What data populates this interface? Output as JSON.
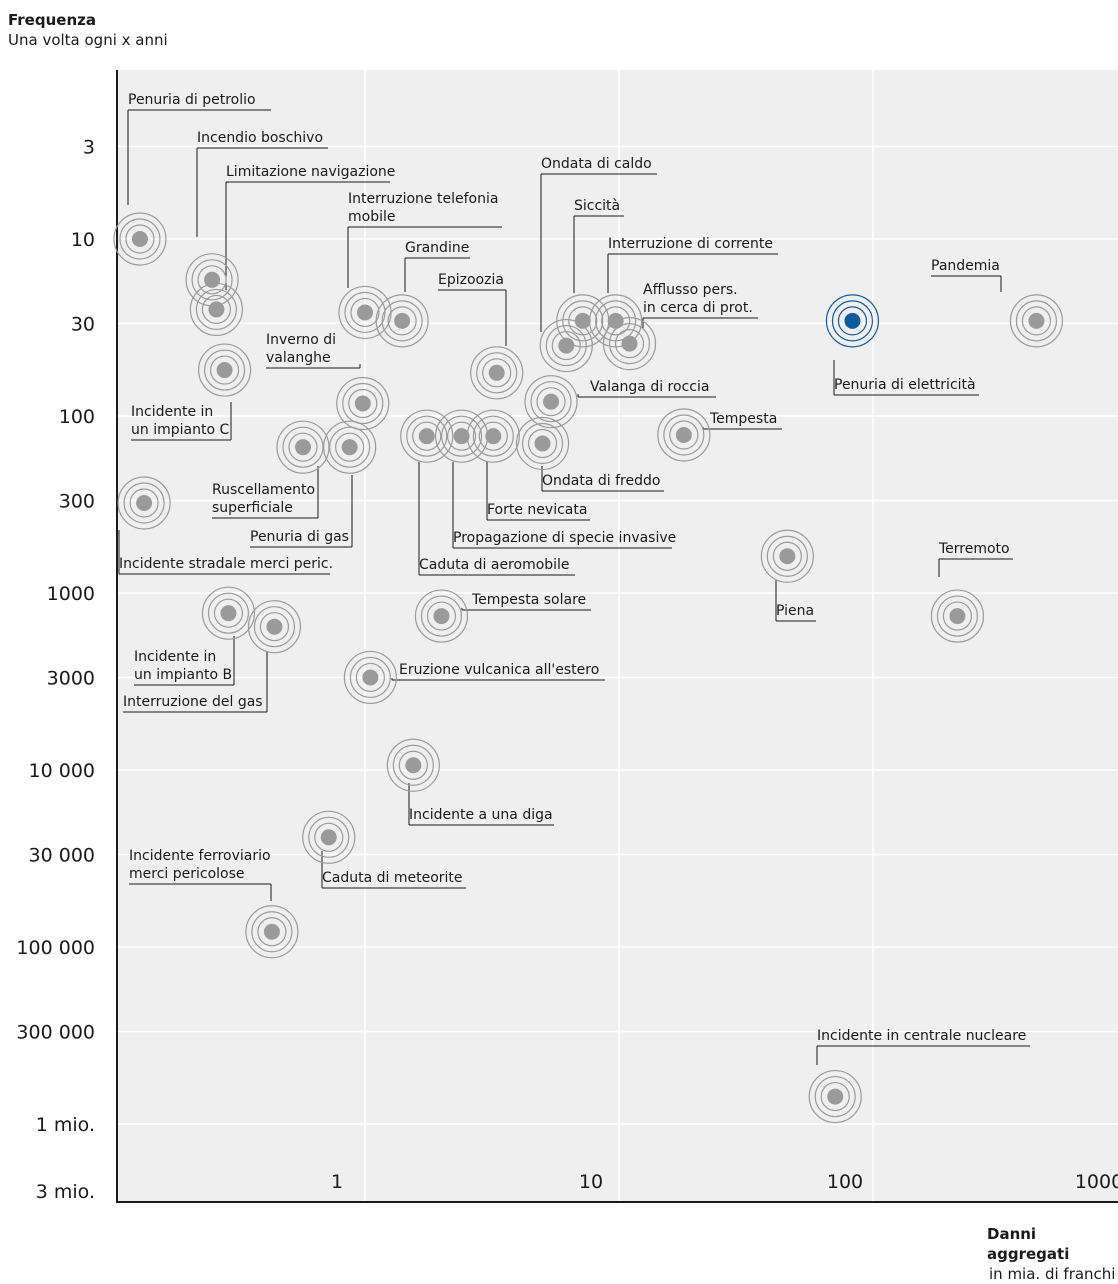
{
  "chart_data": {
    "type": "scatter",
    "y_title": "Frequenza",
    "y_subtitle": "Una volta ogni x anni",
    "x_title": "Danni aggregati",
    "x_subtitle": "in mia. di franchi",
    "x_scale": "log",
    "y_scale": "log (inverted)",
    "xlim": [
      0.1,
      2000
    ],
    "ylim": [
      1,
      3000000
    ],
    "grid": true,
    "x_ticks": [
      {
        "value": 1,
        "label": "1"
      },
      {
        "value": 10,
        "label": "10"
      },
      {
        "value": 100,
        "label": "100"
      },
      {
        "value": 1000,
        "label": "1000"
      }
    ],
    "y_ticks": [
      {
        "value": 3,
        "label": "3"
      },
      {
        "value": 10,
        "label": "10"
      },
      {
        "value": 30,
        "label": "30"
      },
      {
        "value": 100,
        "label": "100"
      },
      {
        "value": 300,
        "label": "300"
      },
      {
        "value": 1000,
        "label": "1000"
      },
      {
        "value": 3000,
        "label": "3000"
      },
      {
        "value": 10000,
        "label": "10 000"
      },
      {
        "value": 30000,
        "label": "30 000"
      },
      {
        "value": 100000,
        "label": "100 000"
      },
      {
        "value": 300000,
        "label": "300 000"
      },
      {
        "value": 1000000,
        "label": "1 mio."
      },
      {
        "value": 3000000,
        "label": "3 mio."
      }
    ],
    "points": [
      {
        "label": "Penuria di petrolio",
        "x": 0.13,
        "y": 10
      },
      {
        "label": "Incendio boschivo",
        "x": 0.25,
        "y": 17
      },
      {
        "label": "Limitazione navigazione",
        "x": 0.26,
        "y": 25
      },
      {
        "label": "Interruzione telefonia mobile",
        "x": 1.0,
        "y": 26
      },
      {
        "label": "Grandine",
        "x": 1.4,
        "y": 29
      },
      {
        "label": "Epizoozia",
        "x": 3.3,
        "y": 57
      },
      {
        "label": "Ondata di caldo",
        "x": 6.2,
        "y": 40
      },
      {
        "label": "Siccità",
        "x": 7.2,
        "y": 29
      },
      {
        "label": "Interruzione di corrente",
        "x": 9.7,
        "y": 29
      },
      {
        "label": "Afflusso pers. in cerca di prot.",
        "x": 11,
        "y": 39
      },
      {
        "label": "Pandemia",
        "x": 440,
        "y": 29
      },
      {
        "label": "Penuria di elettricità",
        "x": 83,
        "y": 29
      },
      {
        "label": "Inverno di valanghe",
        "x": 0.98,
        "y": 85
      },
      {
        "label": "Incidente in un impianto C",
        "x": 0.28,
        "y": 55
      },
      {
        "label": "Valanga di roccia",
        "x": 5.4,
        "y": 83
      },
      {
        "label": "Tempesta",
        "x": 18,
        "y": 128
      },
      {
        "label": "Ondata di freddo",
        "x": 5.0,
        "y": 143
      },
      {
        "label": "Ruscellamento superficiale",
        "x": 0.57,
        "y": 150
      },
      {
        "label": "Penuria di gas",
        "x": 0.87,
        "y": 150
      },
      {
        "label": "Caduta di aeromobile",
        "x": 1.75,
        "y": 130
      },
      {
        "label": "Propagazione di specie invasive",
        "x": 2.4,
        "y": 130
      },
      {
        "label": "Forte nevicata",
        "x": 3.2,
        "y": 130
      },
      {
        "label": "Incidente stradale merci peric.",
        "x": 0.135,
        "y": 310
      },
      {
        "label": "Piena",
        "x": 46,
        "y": 620
      },
      {
        "label": "Terremoto",
        "x": 215,
        "y": 1350
      },
      {
        "label": "Incidente in un impianto B",
        "x": 0.29,
        "y": 1300
      },
      {
        "label": "Interruzione del gas",
        "x": 0.44,
        "y": 1550
      },
      {
        "label": "Tempesta solare",
        "x": 2.0,
        "y": 1350
      },
      {
        "label": "Eruzione vulcanica all'estero",
        "x": 1.05,
        "y": 3000
      },
      {
        "label": "Incidente a una diga",
        "x": 1.55,
        "y": 9400
      },
      {
        "label": "Caduta di meteorite",
        "x": 0.72,
        "y": 24000
      },
      {
        "label": "Incidente ferroviario merci pericolose",
        "x": 0.43,
        "y": 82000
      },
      {
        "label": "Incidente in centrale nucleare",
        "x": 71,
        "y": 700000
      }
    ],
    "highlight": "Penuria di elettricità",
    "highlight_color": "#0f5ba0",
    "point_color": "#9a9a9a"
  },
  "labels": [
    {
      "lines": [
        "Penuria di petrolio"
      ]
    },
    {
      "lines": [
        "Incendio boschivo"
      ]
    },
    {
      "lines": [
        "Limitazione navigazione"
      ]
    },
    {
      "lines": [
        "Interruzione telefonia",
        "mobile"
      ]
    },
    {
      "lines": [
        "Grandine"
      ]
    },
    {
      "lines": [
        "Epizoozia"
      ]
    },
    {
      "lines": [
        "Ondata di caldo"
      ]
    },
    {
      "lines": [
        "Siccità"
      ]
    },
    {
      "lines": [
        "Interruzione di corrente"
      ]
    },
    {
      "lines": [
        "Afflusso pers.",
        "in cerca di prot."
      ]
    },
    {
      "lines": [
        "Pandemia"
      ]
    },
    {
      "lines": [
        "Penuria di elettricità"
      ]
    },
    {
      "lines": [
        "Inverno di",
        "valanghe"
      ]
    },
    {
      "lines": [
        "Incidente in",
        "un impianto C"
      ]
    },
    {
      "lines": [
        "Valanga di roccia"
      ]
    },
    {
      "lines": [
        "Tempesta"
      ]
    },
    {
      "lines": [
        "Ondata di freddo"
      ]
    },
    {
      "lines": [
        "Ruscellamento",
        "superficiale"
      ]
    },
    {
      "lines": [
        "Penuria di gas"
      ]
    },
    {
      "lines": [
        "Caduta di aeromobile"
      ]
    },
    {
      "lines": [
        "Propagazione di specie invasive"
      ]
    },
    {
      "lines": [
        "Forte nevicata"
      ]
    },
    {
      "lines": [
        "Incidente stradale merci peric."
      ]
    },
    {
      "lines": [
        "Piena"
      ]
    },
    {
      "lines": [
        "Terremoto"
      ]
    },
    {
      "lines": [
        "Incidente in",
        "un impianto B"
      ]
    },
    {
      "lines": [
        "Interruzione del gas"
      ]
    },
    {
      "lines": [
        "Tempesta solare"
      ]
    },
    {
      "lines": [
        "Eruzione vulcanica all'estero"
      ]
    },
    {
      "lines": [
        "Incidente a una diga"
      ]
    },
    {
      "lines": [
        "Caduta di meteorite"
      ]
    },
    {
      "lines": [
        "Incidente ferroviario",
        "merci pericolose"
      ]
    },
    {
      "lines": [
        "Incidente in centrale nucleare"
      ]
    }
  ]
}
